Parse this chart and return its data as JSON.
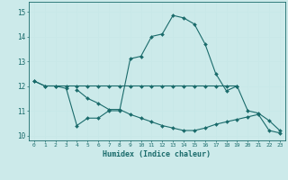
{
  "title": "",
  "xlabel": "Humidex (Indice chaleur)",
  "background_color": "#cceaea",
  "grid_color": "#aadddd",
  "line_color": "#1a6b6b",
  "x_values": [
    0,
    1,
    2,
    3,
    4,
    5,
    6,
    7,
    8,
    9,
    10,
    11,
    12,
    13,
    14,
    15,
    16,
    17,
    18,
    19,
    20,
    21,
    22,
    23
  ],
  "line2_y": [
    12.2,
    12.0,
    12.0,
    11.9,
    10.4,
    10.7,
    10.7,
    11.0,
    11.0,
    13.1,
    13.2,
    14.0,
    14.1,
    14.85,
    14.75,
    14.5,
    13.7,
    12.5,
    11.8,
    12.0,
    11.0,
    10.9,
    10.6,
    10.2
  ],
  "line3_y": [
    12.2,
    12.0,
    12.0,
    12.0,
    12.0,
    12.0,
    12.0,
    12.0,
    12.0,
    12.0,
    12.0,
    12.0,
    12.0,
    12.0,
    12.0,
    12.0,
    12.0,
    12.0,
    12.0,
    12.0,
    null,
    null,
    null,
    null
  ],
  "line4_y": [
    null,
    null,
    null,
    null,
    11.85,
    11.5,
    11.3,
    11.05,
    11.05,
    10.85,
    10.7,
    10.55,
    10.4,
    10.3,
    10.2,
    10.2,
    10.3,
    10.45,
    10.55,
    10.65,
    10.75,
    10.85,
    10.2,
    10.1
  ],
  "ylim": [
    9.8,
    15.4
  ],
  "xlim": [
    -0.5,
    23.5
  ],
  "yticks": [
    10,
    11,
    12,
    13,
    14,
    15
  ],
  "xticks": [
    0,
    1,
    2,
    3,
    4,
    5,
    6,
    7,
    8,
    9,
    10,
    11,
    12,
    13,
    14,
    15,
    16,
    17,
    18,
    19,
    20,
    21,
    22,
    23
  ]
}
